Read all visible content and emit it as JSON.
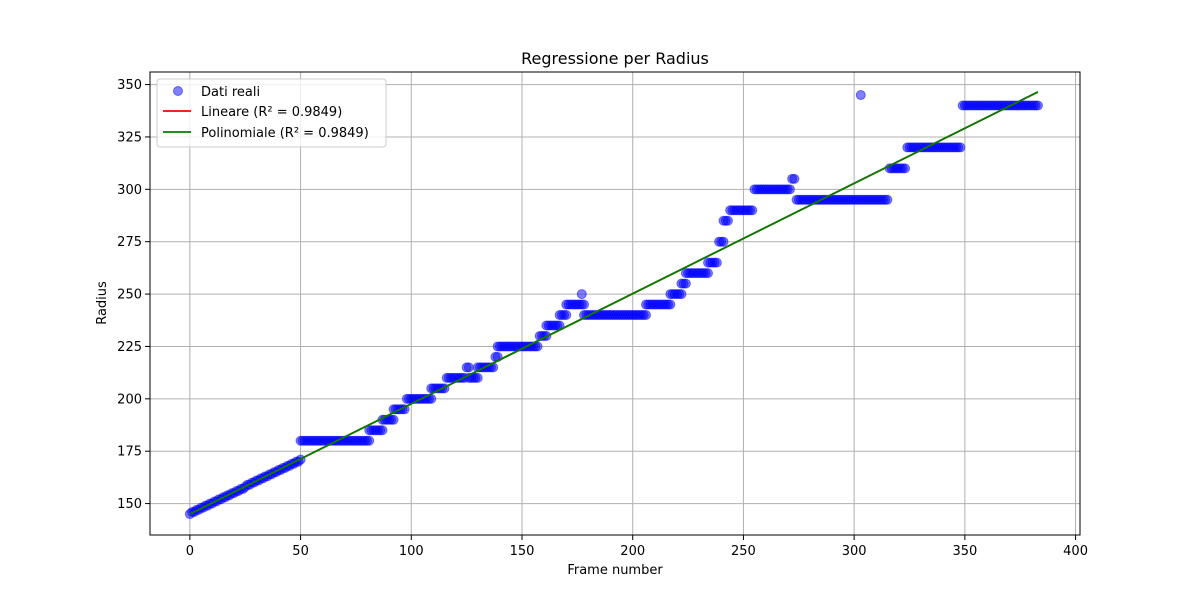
{
  "chart_data": {
    "type": "scatter",
    "title": "Regressione per Radius",
    "xlabel": "Frame number",
    "ylabel": "Radius",
    "xlim": [
      -18,
      402
    ],
    "ylim": [
      135,
      356
    ],
    "xticks": [
      0,
      50,
      100,
      150,
      200,
      250,
      300,
      350,
      400
    ],
    "yticks": [
      150,
      175,
      200,
      225,
      250,
      275,
      300,
      325,
      350
    ],
    "grid": true,
    "legend_position": "top-left",
    "colors": {
      "scatter": "#0000ff",
      "linear": "#ff0000",
      "poly": "#008000",
      "grid": "#b0b0b0"
    },
    "series": [
      {
        "name": "Dati reali",
        "kind": "scatter",
        "segments": [
          {
            "x_start": 0,
            "x_end": 50,
            "y_start": 145,
            "y_end": 171
          },
          {
            "x_start": 50,
            "x_end": 81,
            "y_start": 180,
            "y_end": 180
          },
          {
            "x_start": 81,
            "x_end": 87,
            "y_start": 185,
            "y_end": 185
          },
          {
            "x_start": 87,
            "x_end": 92,
            "y_start": 190,
            "y_end": 190
          },
          {
            "x_start": 92,
            "x_end": 97,
            "y_start": 195,
            "y_end": 195
          },
          {
            "x_start": 98,
            "x_end": 109,
            "y_start": 200,
            "y_end": 200
          },
          {
            "x_start": 109,
            "x_end": 115,
            "y_start": 205,
            "y_end": 205
          },
          {
            "x_start": 116,
            "x_end": 124,
            "y_start": 210,
            "y_end": 210
          },
          {
            "x_start": 125,
            "x_end": 126,
            "y_start": 215,
            "y_end": 215
          },
          {
            "x_start": 126,
            "x_end": 130,
            "y_start": 210,
            "y_end": 210
          },
          {
            "x_start": 130,
            "x_end": 137,
            "y_start": 215,
            "y_end": 215
          },
          {
            "x_start": 138,
            "x_end": 139,
            "y_start": 220,
            "y_end": 220
          },
          {
            "x_start": 139,
            "x_end": 157,
            "y_start": 225,
            "y_end": 225
          },
          {
            "x_start": 158,
            "x_end": 161,
            "y_start": 230,
            "y_end": 230
          },
          {
            "x_start": 161,
            "x_end": 167,
            "y_start": 235,
            "y_end": 235
          },
          {
            "x_start": 167,
            "x_end": 170,
            "y_start": 240,
            "y_end": 240
          },
          {
            "x_start": 170,
            "x_end": 178,
            "y_start": 245,
            "y_end": 245
          },
          {
            "x_start": 178,
            "x_end": 206,
            "y_start": 240,
            "y_end": 240
          },
          {
            "x_start": 206,
            "x_end": 217,
            "y_start": 245,
            "y_end": 245
          },
          {
            "x_start": 217,
            "x_end": 222,
            "y_start": 250,
            "y_end": 250
          },
          {
            "x_start": 222,
            "x_end": 224,
            "y_start": 255,
            "y_end": 255
          },
          {
            "x_start": 224,
            "x_end": 234,
            "y_start": 260,
            "y_end": 260
          },
          {
            "x_start": 234,
            "x_end": 238,
            "y_start": 265,
            "y_end": 265
          },
          {
            "x_start": 239,
            "x_end": 241,
            "y_start": 275,
            "y_end": 275
          },
          {
            "x_start": 241,
            "x_end": 243,
            "y_start": 285,
            "y_end": 285
          },
          {
            "x_start": 244,
            "x_end": 254,
            "y_start": 290,
            "y_end": 290
          },
          {
            "x_start": 255,
            "x_end": 271,
            "y_start": 300,
            "y_end": 300
          },
          {
            "x_start": 272,
            "x_end": 273,
            "y_start": 305,
            "y_end": 305
          },
          {
            "x_start": 274,
            "x_end": 315,
            "y_start": 295,
            "y_end": 295
          },
          {
            "x_start": 316,
            "x_end": 323,
            "y_start": 310,
            "y_end": 310
          },
          {
            "x_start": 324,
            "x_end": 348,
            "y_start": 320,
            "y_end": 320
          },
          {
            "x_start": 349,
            "x_end": 383,
            "y_start": 340,
            "y_end": 340
          }
        ],
        "points": [
          {
            "x": 177,
            "y": 250
          },
          {
            "x": 303,
            "y": 345
          }
        ]
      },
      {
        "name": "Lineare (R² = 0.9849)",
        "kind": "line",
        "x": [
          0,
          383
        ],
        "y": [
          145,
          346.5
        ]
      },
      {
        "name": "Polinomiale (R² = 0.9849)",
        "kind": "line",
        "x": [
          0,
          383
        ],
        "y": [
          145,
          346.5
        ]
      }
    ]
  }
}
